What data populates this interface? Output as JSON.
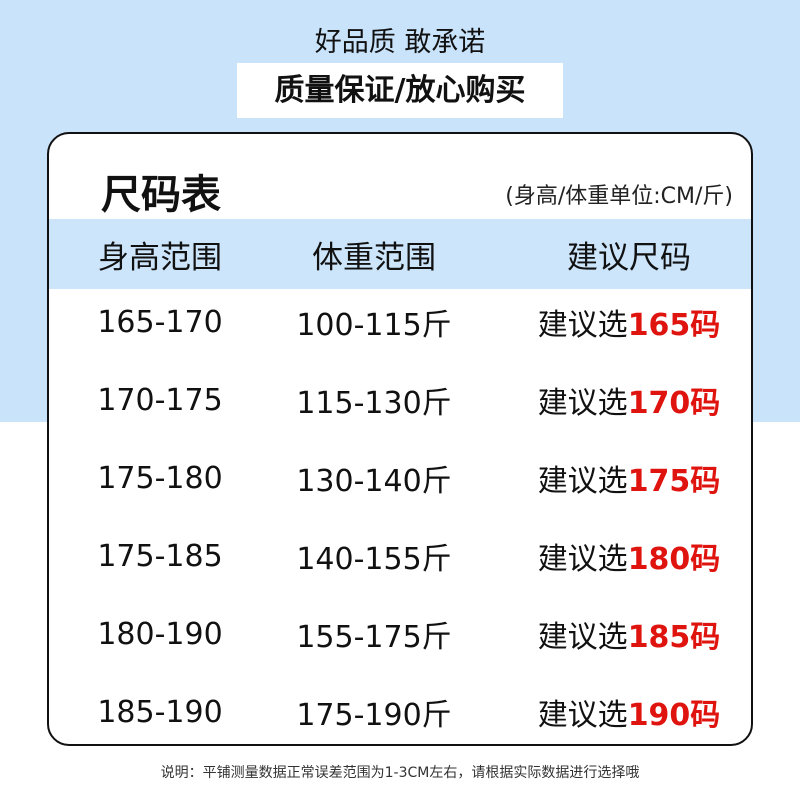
{
  "slogan": "好品质 敢承诺",
  "banner": "质量保证/放心购买",
  "card": {
    "title": "尺码表",
    "unit": "(身高/体重单位:CM/斤)",
    "headers": [
      "身高范围",
      "体重范围",
      "建议尺码"
    ],
    "rows": [
      {
        "height": "165-170",
        "weight": "100-115斤",
        "prefix": "建议选",
        "size": "165码"
      },
      {
        "height": "170-175",
        "weight": "115-130斤",
        "prefix": "建议选",
        "size": "170码"
      },
      {
        "height": "175-180",
        "weight": "130-140斤",
        "prefix": "建议选",
        "size": "175码"
      },
      {
        "height": "175-185",
        "weight": "140-155斤",
        "prefix": "建议选",
        "size": "180码"
      },
      {
        "height": "180-190",
        "weight": "155-175斤",
        "prefix": "建议选",
        "size": "185码"
      },
      {
        "height": "185-190",
        "weight": "175-190斤",
        "prefix": "建议选",
        "size": "190码"
      }
    ]
  },
  "note": "说明：平铺测量数据正常误差范围为1-3CM左右，请根据实际数据进行选择哦",
  "colors": {
    "bg_blue": "#c9e3fb",
    "header_blue": "#cce5fa",
    "accent_red": "#e0140f"
  }
}
